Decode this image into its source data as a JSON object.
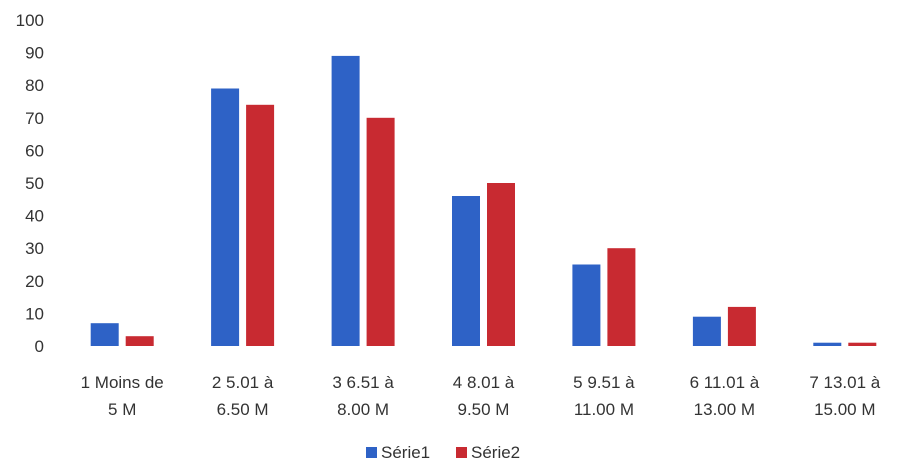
{
  "chart_data": {
    "type": "bar",
    "categories": [
      [
        "1 Moins de",
        "5 M"
      ],
      [
        "2 5.01 à",
        "6.50 M"
      ],
      [
        "3 6.51 à",
        "8.00 M"
      ],
      [
        "4 8.01 à",
        "9.50 M"
      ],
      [
        "5 9.51 à",
        "11.00 M"
      ],
      [
        "6 11.01 à",
        "13.00 M"
      ],
      [
        "7 13.01 à",
        "15.00 M"
      ]
    ],
    "series": [
      {
        "name": "Série1",
        "color": "#2e62c6",
        "values": [
          7,
          79,
          89,
          46,
          25,
          9,
          1
        ]
      },
      {
        "name": "Série2",
        "color": "#c82a31",
        "values": [
          3,
          74,
          70,
          50,
          30,
          12,
          1
        ]
      }
    ],
    "ylim": [
      0,
      100
    ],
    "yticks": [
      "0",
      "10",
      "20",
      "30",
      "40",
      "50",
      "60",
      "70",
      "80",
      "90",
      "100"
    ],
    "gridlines": false,
    "legend_position": "bottom"
  }
}
